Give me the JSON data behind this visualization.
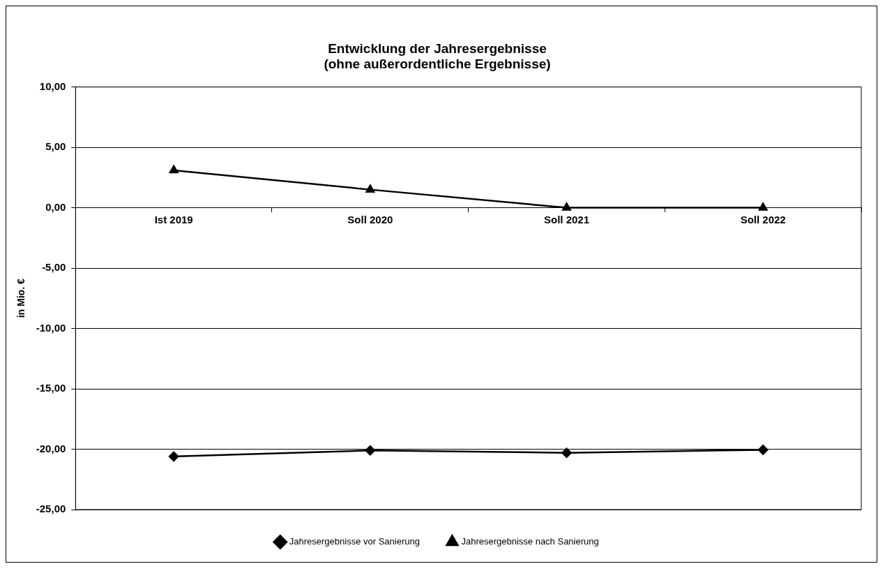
{
  "chart_data": {
    "type": "line",
    "title": "Entwicklung der Jahresergebnisse\n(ohne außerordentliche Ergebnisse)",
    "ylabel": "in Mio. €",
    "categories": [
      "Ist 2019",
      "Soll 2020",
      "Soll 2021",
      "Soll 2022"
    ],
    "series": [
      {
        "name": "Jahresergebnisse vor Sanierung",
        "color": "#000000",
        "marker": "diamond",
        "values": [
          -20.6,
          -20.1,
          -20.3,
          -20.05
        ]
      },
      {
        "name": "Jahresergebnisse nach Sanierung",
        "color": "#000000",
        "marker": "triangle",
        "values": [
          3.1,
          1.5,
          0.0,
          0.0
        ]
      }
    ],
    "ylim": [
      -25,
      10
    ],
    "yticks": [
      {
        "value": -25,
        "label": "-25,00"
      },
      {
        "value": -20,
        "label": "-20,00"
      },
      {
        "value": -15,
        "label": "-15,00"
      },
      {
        "value": -10,
        "label": "-10,00"
      },
      {
        "value": -5,
        "label": "-5,00"
      },
      {
        "value": 0,
        "label": "0,00"
      },
      {
        "value": 5,
        "label": "5,00"
      },
      {
        "value": 10,
        "label": "10,00"
      }
    ],
    "grid": "y",
    "legend": "bottom",
    "line_style": "solid"
  }
}
